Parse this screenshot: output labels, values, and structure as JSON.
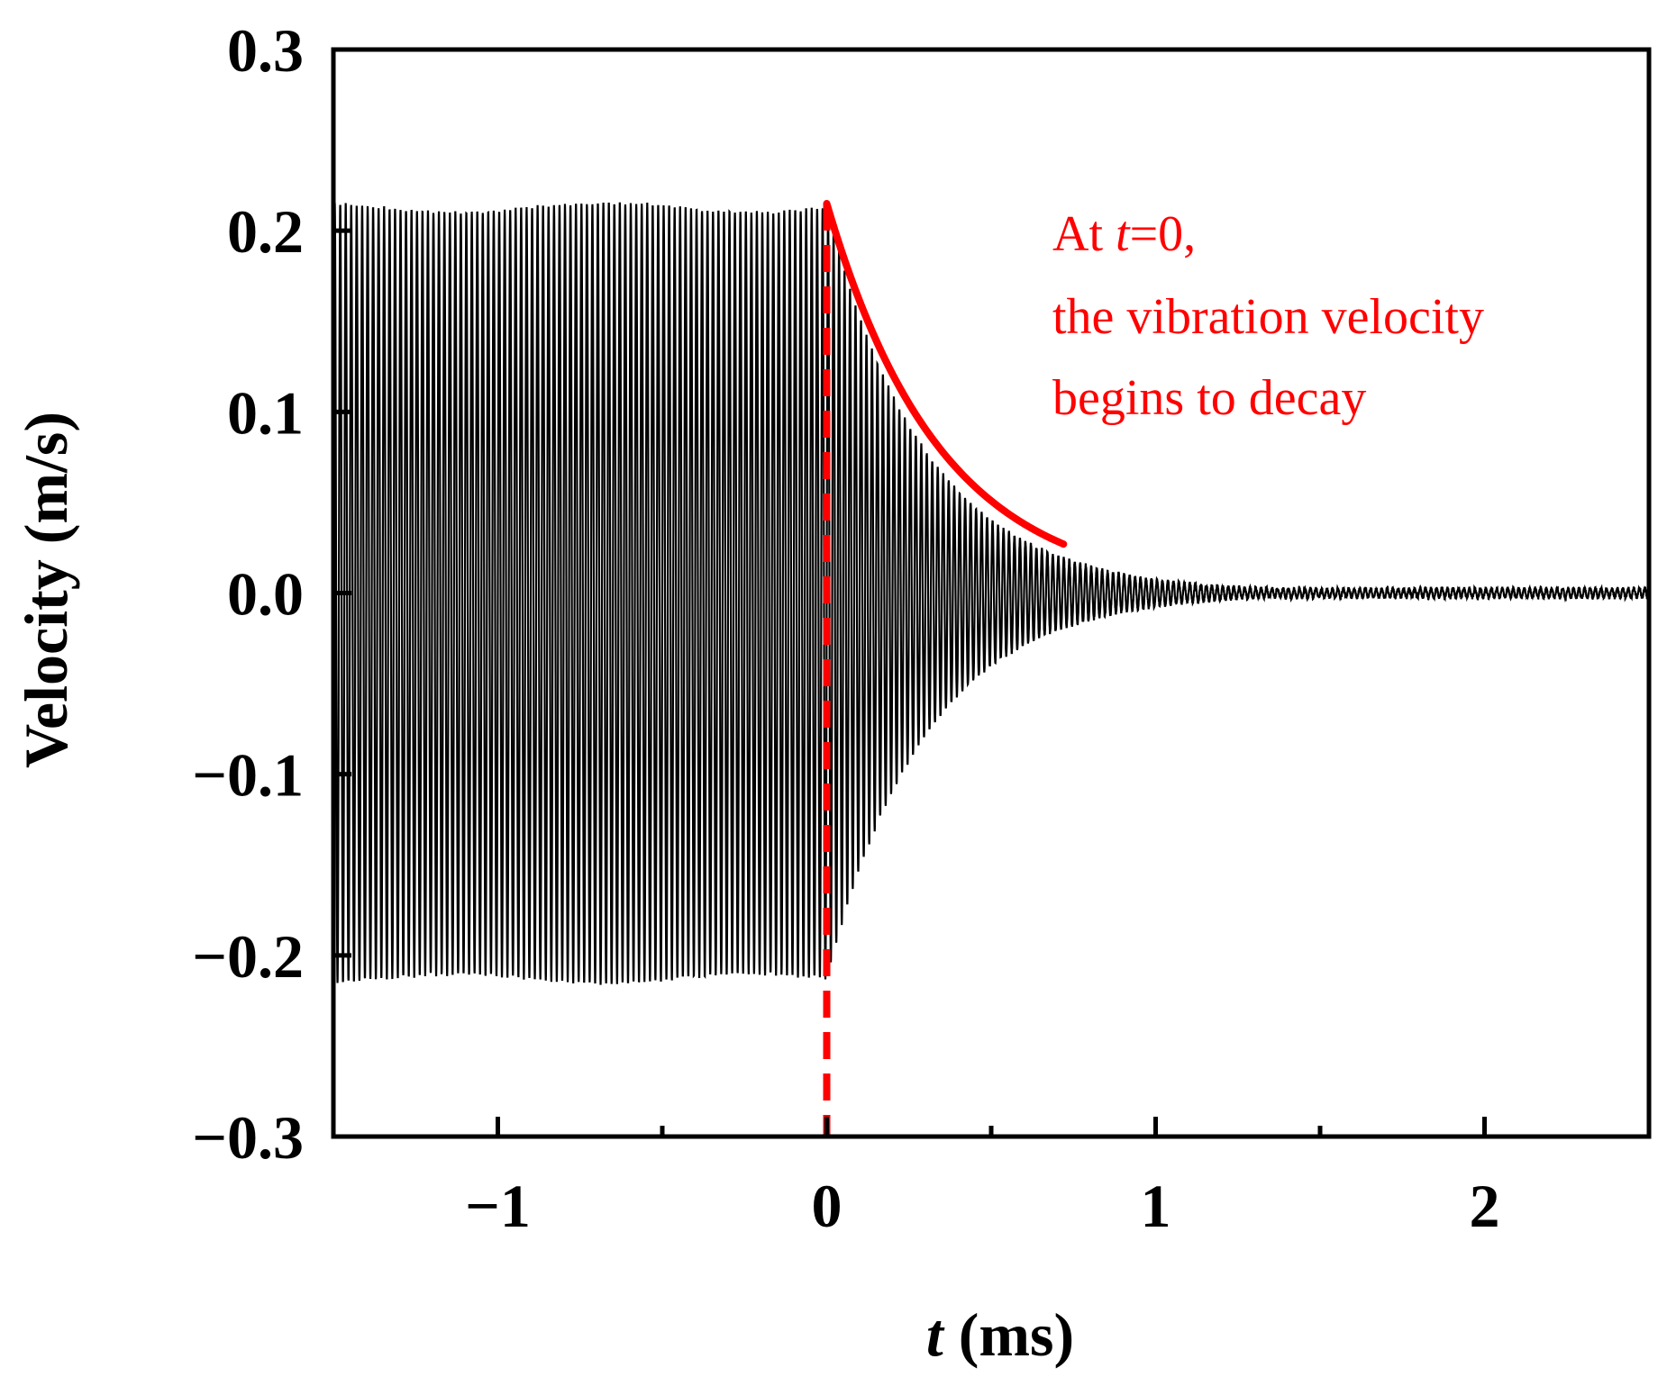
{
  "colors": {
    "signal": "#000000",
    "annotation": "#ff0000",
    "axis": "#000000",
    "background": "#ffffff"
  },
  "chart_data": {
    "type": "line",
    "title": "",
    "xlabel": {
      "italic_part": "t",
      "rest": " (ms)"
    },
    "ylabel": "Velocity (m/s)",
    "xlim": [
      -1.5,
      2.5
    ],
    "ylim": [
      -0.3,
      0.3
    ],
    "x_ticks": [
      {
        "value": -1,
        "label": "−1"
      },
      {
        "value": 0,
        "label": "0"
      },
      {
        "value": 1,
        "label": "1"
      },
      {
        "value": 2,
        "label": "2"
      }
    ],
    "x_minor_ticks": [
      -0.5,
      0.5,
      1.5
    ],
    "y_ticks": [
      {
        "value": 0.3,
        "label": "0.3"
      },
      {
        "value": 0.2,
        "label": "0.2"
      },
      {
        "value": 0.1,
        "label": "0.1"
      },
      {
        "value": 0.0,
        "label": "0.0"
      },
      {
        "value": -0.1,
        "label": "−0.1"
      },
      {
        "value": -0.2,
        "label": "−0.2"
      },
      {
        "value": -0.3,
        "label": "−0.3"
      }
    ],
    "grid": false,
    "series": [
      {
        "name": "vibration velocity",
        "kind": "damped oscillation",
        "steady_amplitude": 0.213,
        "steady_t_range": [
          -1.5,
          0.0
        ],
        "decay_start": 0.0,
        "decay_time_constant_ms": 0.3,
        "oscillation_periods_per_ms": 60,
        "residual_noise_amplitude": 0.0025
      }
    ],
    "annotations": {
      "marker_line": {
        "x": 0.0,
        "y_range": [
          -0.3,
          0.215
        ],
        "style": "dashed"
      },
      "envelope": {
        "t_range": [
          0.0,
          0.72
        ],
        "y_start": 0.215,
        "y_end": 0.027
      },
      "text_lines": [
        {
          "parts": [
            {
              "text": "At ",
              "italic": false
            },
            {
              "text": "t",
              "italic": true
            },
            {
              "text": "=0,",
              "italic": false
            }
          ]
        },
        {
          "parts": [
            {
              "text": "the vibration velocity",
              "italic": false
            }
          ]
        },
        {
          "parts": [
            {
              "text": "begins to decay",
              "italic": false
            }
          ]
        }
      ]
    }
  }
}
